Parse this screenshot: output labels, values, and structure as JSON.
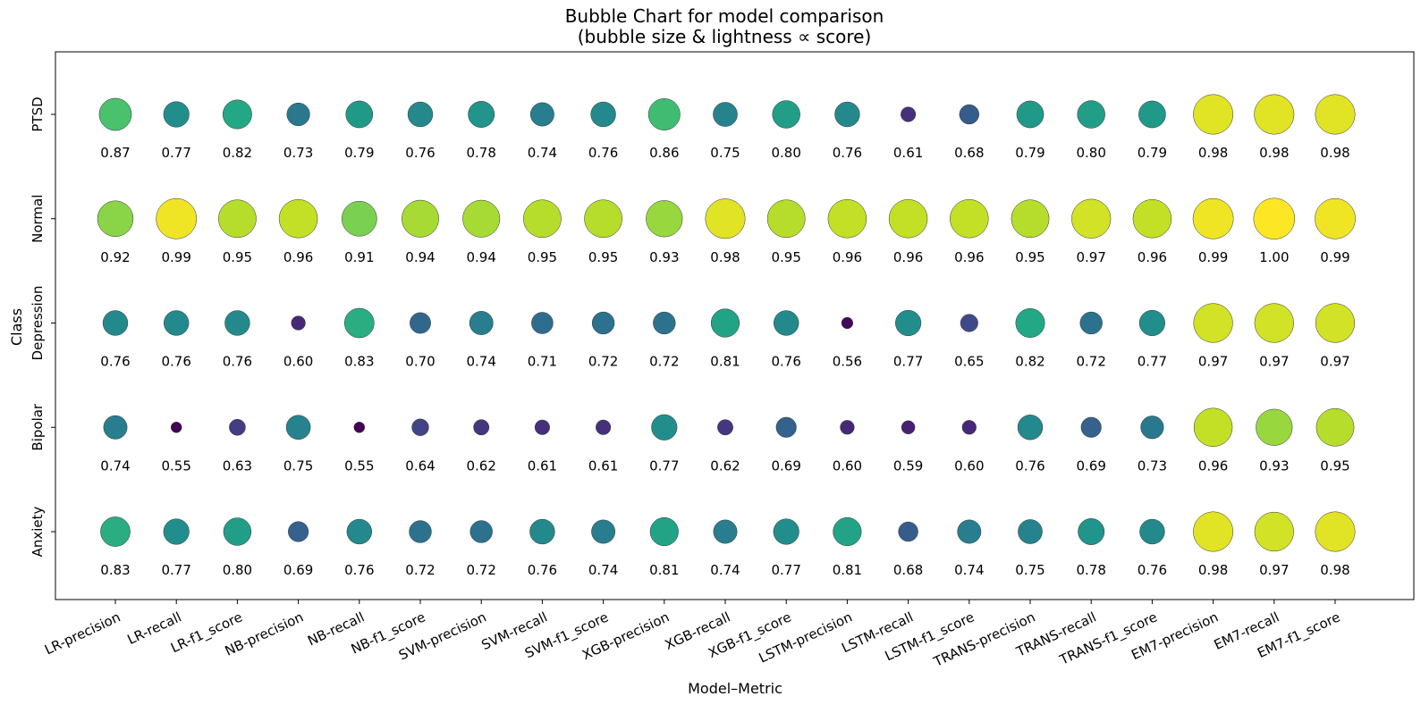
{
  "chart_data": {
    "type": "scatter",
    "subtype": "bubble",
    "title": "Bubble Chart for model comparison",
    "subtitle": "(bubble size & lightness ∝ score)",
    "xlabel": "Model–Metric",
    "ylabel": "Class",
    "x_categories": [
      "LR-precision",
      "LR-recall",
      "LR-f1_score",
      "NB-precision",
      "NB-recall",
      "NB-f1_score",
      "SVM-precision",
      "SVM-recall",
      "SVM-f1_score",
      "XGB-precision",
      "XGB-recall",
      "XGB-f1_score",
      "LSTM-precision",
      "LSTM-recall",
      "LSTM-f1_score",
      "TRANS-precision",
      "TRANS-recall",
      "TRANS-f1_score",
      "EM7-precision",
      "EM7-recall",
      "EM7-f1_score"
    ],
    "y_categories": [
      "Anxiety",
      "Bipolar",
      "Depression",
      "Normal",
      "PTSD"
    ],
    "values": {
      "PTSD": [
        0.87,
        0.77,
        0.82,
        0.73,
        0.79,
        0.76,
        0.78,
        0.74,
        0.76,
        0.86,
        0.75,
        0.8,
        0.76,
        0.61,
        0.68,
        0.79,
        0.8,
        0.79,
        0.98,
        0.98,
        0.98
      ],
      "Normal": [
        0.92,
        0.99,
        0.95,
        0.96,
        0.91,
        0.94,
        0.94,
        0.95,
        0.95,
        0.93,
        0.98,
        0.95,
        0.96,
        0.96,
        0.96,
        0.95,
        0.97,
        0.96,
        0.99,
        1.0,
        0.99
      ],
      "Depression": [
        0.76,
        0.76,
        0.76,
        0.6,
        0.83,
        0.7,
        0.74,
        0.71,
        0.72,
        0.72,
        0.81,
        0.76,
        0.56,
        0.77,
        0.65,
        0.82,
        0.72,
        0.77,
        0.97,
        0.97,
        0.97
      ],
      "Bipolar": [
        0.74,
        0.55,
        0.63,
        0.75,
        0.55,
        0.64,
        0.62,
        0.61,
        0.61,
        0.77,
        0.62,
        0.69,
        0.6,
        0.59,
        0.6,
        0.76,
        0.69,
        0.73,
        0.96,
        0.93,
        0.95
      ],
      "Anxiety": [
        0.83,
        0.77,
        0.8,
        0.69,
        0.76,
        0.72,
        0.72,
        0.76,
        0.74,
        0.81,
        0.74,
        0.77,
        0.81,
        0.68,
        0.74,
        0.75,
        0.78,
        0.76,
        0.98,
        0.97,
        0.98
      ]
    },
    "colormap": "viridis",
    "color_range": [
      0.55,
      1.0
    ],
    "grid": false,
    "legend": "none"
  }
}
